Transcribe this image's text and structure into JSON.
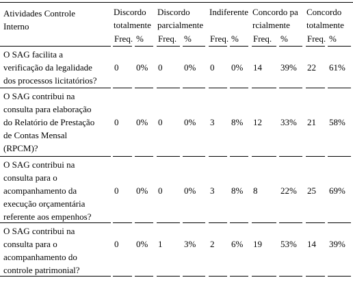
{
  "table": {
    "corner_header": [
      "Atividades  Controle",
      "Interno"
    ],
    "groups": [
      {
        "lines": [
          "Discordo",
          "totalmente"
        ]
      },
      {
        "lines": [
          "Discordo",
          "parcialmente"
        ]
      },
      {
        "lines": [
          "Indiferente"
        ]
      },
      {
        "lines": [
          "Concordo pa",
          "rcialmente"
        ]
      },
      {
        "lines": [
          "Concordo",
          "totalmente"
        ]
      }
    ],
    "subheaders": [
      "Freq.",
      "%"
    ],
    "rows": [
      {
        "label": [
          "O SAG facilita a",
          "verificação da legalidade",
          "dos processos licitatórios?"
        ],
        "cells": [
          "0",
          "0%",
          "0",
          "0%",
          "0",
          "0%",
          "14",
          "39%",
          "22",
          "61%"
        ]
      },
      {
        "label": [
          "O SAG contribui na",
          "consulta para elaboração",
          "do Relatório de Prestação",
          "de Contas Mensal",
          "(RPCM)?"
        ],
        "cells": [
          "0",
          "0%",
          "0",
          "0%",
          "3",
          "8%",
          "12",
          "33%",
          "21",
          "58%"
        ]
      },
      {
        "label": [
          "O SAG contribui na",
          "consulta para o",
          "acompanhamento da",
          "execução orçamentária",
          "referente aos empenhos?"
        ],
        "cells": [
          "0",
          "0%",
          "0",
          "0%",
          "3",
          "8%",
          "8",
          "22%",
          "25",
          "69%"
        ]
      },
      {
        "label": [
          "O SAG contribui na",
          "consulta para o",
          "acompanhamento do",
          "controle patrimonial?"
        ],
        "cells": [
          "0",
          "0%",
          "1",
          "3%",
          "2",
          "6%",
          "19",
          "53%",
          "14",
          "39%"
        ]
      }
    ]
  }
}
